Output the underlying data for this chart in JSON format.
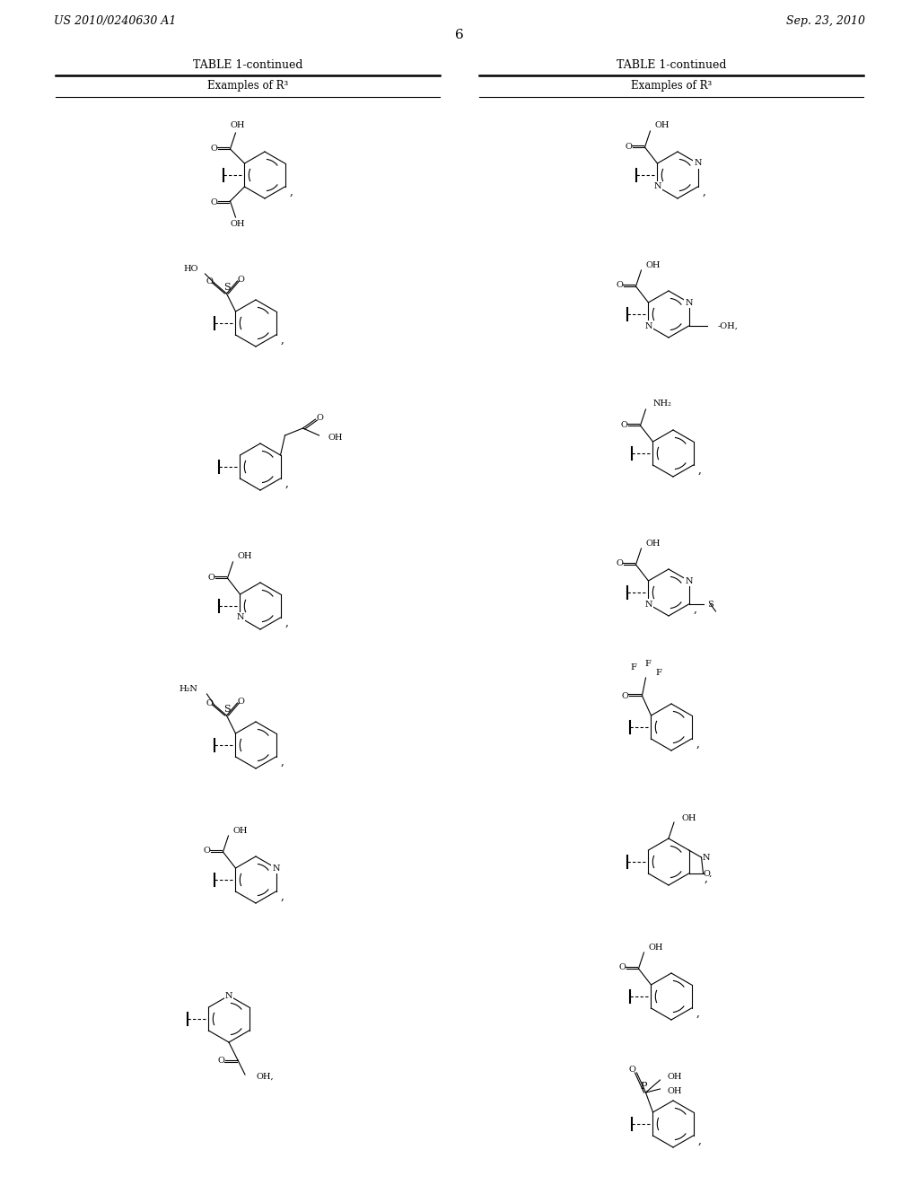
{
  "bg_color": "#ffffff",
  "page_left": "US 2010/0240630 A1",
  "page_right": "Sep. 23, 2010",
  "page_number": "6",
  "table_title": "TABLE 1-continued",
  "col_header": "Examples of R³"
}
